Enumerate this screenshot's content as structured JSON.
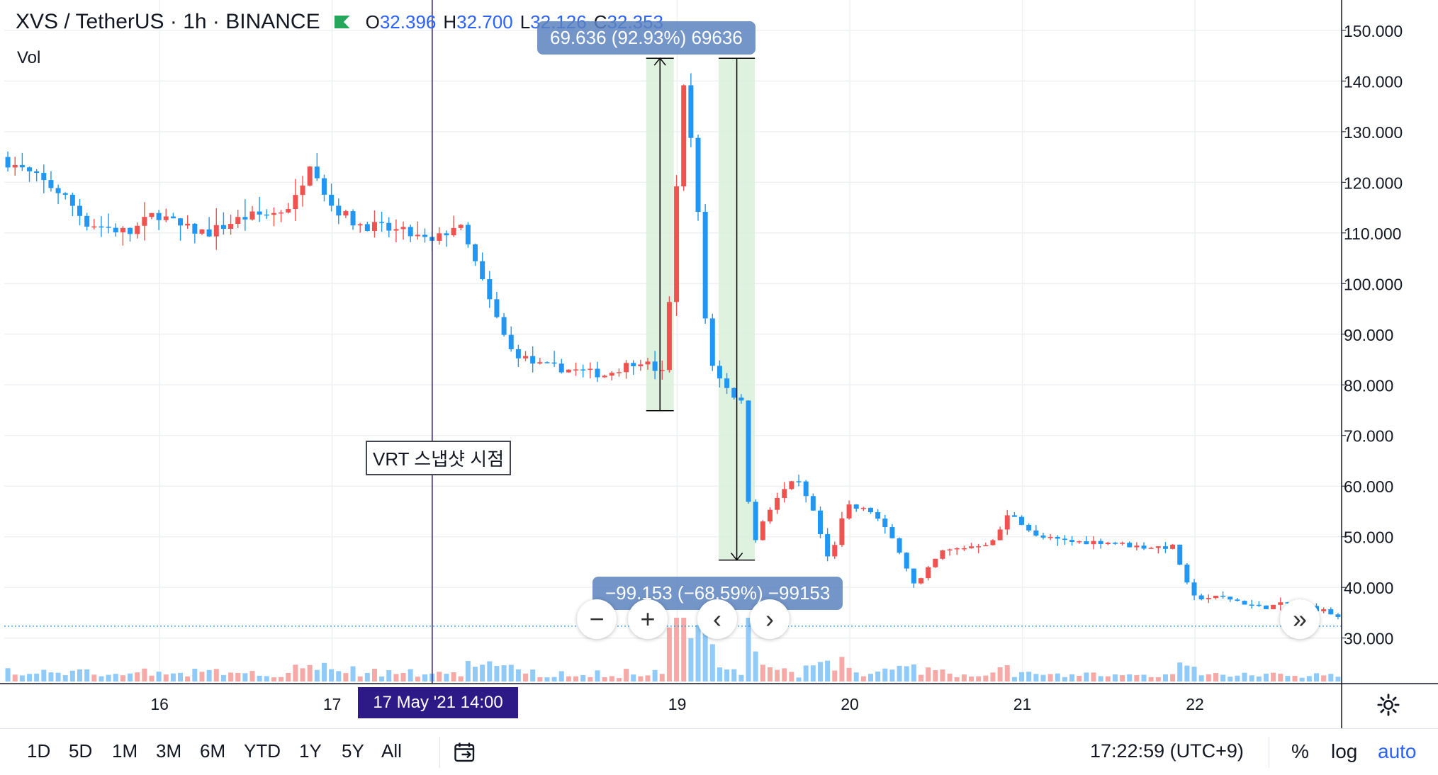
{
  "legend": {
    "symbol": "XVS / TetherUS · 1h · BINANCE",
    "o_label": "O",
    "o_value": "32.396",
    "h_label": "H",
    "h_value": "32.700",
    "l_label": "L",
    "l_value": "32.126",
    "c_label": "C",
    "c_value": "32.353",
    "vol_label": "Vol"
  },
  "measures": [
    {
      "text": "69.636 (92.93%) 69636"
    },
    {
      "text": "−99.153 (−68.59%) −99153"
    }
  ],
  "annotation": {
    "text": "VRT 스냅샷 시점"
  },
  "time_cursor": {
    "text": "17 May '21   14:00"
  },
  "nav": {
    "zoom_out": "−",
    "zoom_in": "+",
    "scroll_left": "‹",
    "scroll_right": "›",
    "go_latest": "»"
  },
  "ranges": [
    "1D",
    "5D",
    "1M",
    "3M",
    "6M",
    "YTD",
    "1Y",
    "5Y",
    "All"
  ],
  "clock": "17:22:59 (UTC+9)",
  "modes": {
    "percent": "%",
    "log": "log",
    "auto": "auto"
  },
  "colors": {
    "up": "#ef5350",
    "down": "#2196f3",
    "vol_up": "#f7a9a7",
    "vol_down": "#90caf9",
    "measure_fill": "#d9eed9",
    "grid": "#eef0f3"
  },
  "chart_data": {
    "type": "candlestick",
    "symbol": "XVS / TetherUS",
    "interval": "1h",
    "exchange": "BINANCE",
    "y_ticks": [
      "30.000",
      "40.000",
      "50.000",
      "60.000",
      "70.000",
      "80.000",
      "90.000",
      "100.000",
      "110.000",
      "120.000",
      "130.000",
      "140.000",
      "150.000"
    ],
    "ylim": [
      21,
      156
    ],
    "x_ticks": [
      {
        "label": "16",
        "day": 16
      },
      {
        "label": "17",
        "day": 17
      },
      {
        "label": "19",
        "day": 19
      },
      {
        "label": "20",
        "day": 20
      },
      {
        "label": "21",
        "day": 21
      },
      {
        "label": "22",
        "day": 22
      }
    ],
    "x_range": [
      15.1,
      22.85
    ],
    "price_anchors": [
      [
        15.1,
        125
      ],
      [
        15.25,
        122
      ],
      [
        15.45,
        118
      ],
      [
        15.6,
        112
      ],
      [
        15.85,
        110
      ],
      [
        16.0,
        114
      ],
      [
        16.15,
        111
      ],
      [
        16.3,
        110
      ],
      [
        16.5,
        113
      ],
      [
        16.7,
        114
      ],
      [
        16.8,
        116
      ],
      [
        16.9,
        125
      ],
      [
        17.0,
        116
      ],
      [
        17.15,
        112
      ],
      [
        17.3,
        111
      ],
      [
        17.45,
        110
      ],
      [
        17.6,
        108
      ],
      [
        17.75,
        112
      ],
      [
        17.85,
        104
      ],
      [
        17.95,
        95
      ],
      [
        18.05,
        87
      ],
      [
        18.2,
        84
      ],
      [
        18.4,
        83
      ],
      [
        18.6,
        82
      ],
      [
        18.8,
        85
      ],
      [
        18.95,
        82
      ],
      [
        19.0,
        110
      ],
      [
        19.05,
        140
      ],
      [
        19.1,
        130
      ],
      [
        19.15,
        110
      ],
      [
        19.2,
        85
      ],
      [
        19.3,
        80
      ],
      [
        19.4,
        76
      ],
      [
        19.45,
        48
      ],
      [
        19.55,
        55
      ],
      [
        19.7,
        62
      ],
      [
        19.8,
        56
      ],
      [
        19.9,
        45
      ],
      [
        20.0,
        56
      ],
      [
        20.15,
        55
      ],
      [
        20.3,
        48
      ],
      [
        20.4,
        40
      ],
      [
        20.55,
        47
      ],
      [
        20.7,
        48
      ],
      [
        20.85,
        49
      ],
      [
        20.95,
        55
      ],
      [
        21.1,
        50
      ],
      [
        21.3,
        49
      ],
      [
        21.5,
        49
      ],
      [
        21.7,
        48
      ],
      [
        21.9,
        48
      ],
      [
        22.0,
        38
      ],
      [
        22.2,
        38
      ],
      [
        22.4,
        36
      ],
      [
        22.6,
        37
      ],
      [
        22.8,
        35
      ],
      [
        22.85,
        34
      ]
    ],
    "measurements": [
      {
        "change": "69.636",
        "percent": "92.93%",
        "ticks": "69636",
        "from_price": 74.9,
        "to_price": 144.5,
        "day_from": 18.82,
        "day_to": 18.98,
        "direction": "up"
      },
      {
        "change": "-99.153",
        "percent": "-68.59%",
        "ticks": "-99153",
        "from_price": 144.5,
        "to_price": 45.4,
        "day_from": 19.24,
        "day_to": 19.45,
        "direction": "down"
      }
    ],
    "annotation": {
      "text": "VRT 스냅샷 시점",
      "day": 17.58,
      "time_label": "17 May '21   14:00"
    },
    "last_price": 32.353,
    "volume_series": "Vol"
  }
}
